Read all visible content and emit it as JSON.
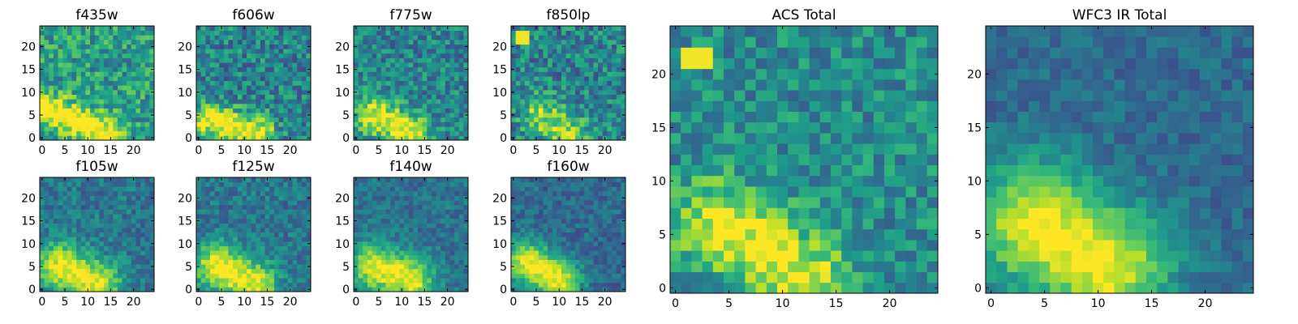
{
  "figure": {
    "background": "#ffffff",
    "colormap": "viridis",
    "colormap_stops": [
      "#440154",
      "#482777",
      "#3e4989",
      "#31688e",
      "#26828e",
      "#1f9e89",
      "#35b779",
      "#6ece58",
      "#b5de2b",
      "#fde725"
    ]
  },
  "chart_data": [
    {
      "type": "heatmap",
      "title": "f435w",
      "grid": [
        25,
        25
      ],
      "xlim": [
        0,
        24
      ],
      "ylim": [
        0,
        24
      ],
      "xticks": [
        0,
        5,
        10,
        15,
        20
      ],
      "yticks": [
        0,
        5,
        10,
        15,
        20
      ],
      "blob": {
        "type": "ridge",
        "from": [
          2,
          6
        ],
        "to": [
          14,
          1
        ],
        "width": 3.5,
        "amp": 0.55
      },
      "base": 0.55,
      "noise": 0.22,
      "seed": 11
    },
    {
      "type": "heatmap",
      "title": "f606w",
      "grid": [
        25,
        25
      ],
      "xlim": [
        0,
        24
      ],
      "ylim": [
        0,
        24
      ],
      "xticks": [
        0,
        5,
        10,
        15,
        20
      ],
      "yticks": [
        0,
        5,
        10,
        15,
        20
      ],
      "blob": {
        "type": "ridge",
        "from": [
          2,
          4
        ],
        "to": [
          13,
          1
        ],
        "width": 3.5,
        "amp": 0.6
      },
      "base": 0.45,
      "noise": 0.22,
      "seed": 23
    },
    {
      "type": "heatmap",
      "title": "f775w",
      "grid": [
        25,
        25
      ],
      "xlim": [
        0,
        24
      ],
      "ylim": [
        0,
        24
      ],
      "xticks": [
        0,
        5,
        10,
        15,
        20
      ],
      "yticks": [
        0,
        5,
        10,
        15,
        20
      ],
      "blob": {
        "type": "ridge",
        "from": [
          4,
          5
        ],
        "to": [
          12,
          1
        ],
        "width": 4.0,
        "amp": 0.55
      },
      "base": 0.45,
      "noise": 0.2,
      "seed": 37
    },
    {
      "type": "heatmap",
      "title": "f850lp",
      "grid": [
        25,
        25
      ],
      "xlim": [
        0,
        24
      ],
      "ylim": [
        0,
        24
      ],
      "xticks": [
        0,
        5,
        10,
        15,
        20
      ],
      "yticks": [
        0,
        5,
        10,
        15,
        20
      ],
      "blob": {
        "type": "ridge",
        "from": [
          6,
          5
        ],
        "to": [
          12,
          1
        ],
        "width": 4.0,
        "amp": 0.4
      },
      "base": 0.45,
      "noise": 0.22,
      "seed": 41,
      "hotspot": {
        "x": [
          1,
          3
        ],
        "y": [
          21,
          23
        ],
        "value": 0.98
      }
    },
    {
      "type": "heatmap",
      "title": "f105w",
      "grid": [
        25,
        25
      ],
      "xlim": [
        0,
        24
      ],
      "ylim": [
        0,
        24
      ],
      "xticks": [
        0,
        5,
        10,
        15,
        20
      ],
      "yticks": [
        0,
        5,
        10,
        15,
        20
      ],
      "blob": {
        "type": "ridge",
        "from": [
          4,
          5
        ],
        "to": [
          12,
          1
        ],
        "width": 5.0,
        "amp": 0.6
      },
      "base": 0.4,
      "noise": 0.14,
      "seed": 53
    },
    {
      "type": "heatmap",
      "title": "f125w",
      "grid": [
        25,
        25
      ],
      "xlim": [
        0,
        24
      ],
      "ylim": [
        0,
        24
      ],
      "xticks": [
        0,
        5,
        10,
        15,
        20
      ],
      "yticks": [
        0,
        5,
        10,
        15,
        20
      ],
      "blob": {
        "type": "ridge",
        "from": [
          4,
          5
        ],
        "to": [
          12,
          1
        ],
        "width": 5.0,
        "amp": 0.6
      },
      "base": 0.4,
      "noise": 0.14,
      "seed": 67
    },
    {
      "type": "heatmap",
      "title": "f140w",
      "grid": [
        25,
        25
      ],
      "xlim": [
        0,
        24
      ],
      "ylim": [
        0,
        24
      ],
      "xticks": [
        0,
        5,
        10,
        15,
        20
      ],
      "yticks": [
        0,
        5,
        10,
        15,
        20
      ],
      "blob": {
        "type": "ridge",
        "from": [
          4,
          5
        ],
        "to": [
          12,
          2
        ],
        "width": 5.0,
        "amp": 0.6
      },
      "base": 0.38,
      "noise": 0.12,
      "seed": 71
    },
    {
      "type": "heatmap",
      "title": "f160w",
      "grid": [
        25,
        25
      ],
      "xlim": [
        0,
        24
      ],
      "ylim": [
        0,
        24
      ],
      "xticks": [
        0,
        5,
        10,
        15,
        20
      ],
      "yticks": [
        0,
        5,
        10,
        15,
        20
      ],
      "blob": {
        "type": "ridge",
        "from": [
          3,
          6
        ],
        "to": [
          10,
          2
        ],
        "width": 4.5,
        "amp": 0.65
      },
      "base": 0.35,
      "noise": 0.12,
      "seed": 83
    },
    {
      "type": "heatmap",
      "title": "ACS Total",
      "grid": [
        25,
        25
      ],
      "xlim": [
        0,
        24
      ],
      "ylim": [
        0,
        24
      ],
      "xticks": [
        0,
        5,
        10,
        15,
        20
      ],
      "yticks": [
        0,
        5,
        10,
        15,
        20
      ],
      "blob": {
        "type": "ridge",
        "from": [
          4,
          6
        ],
        "to": [
          12,
          1
        ],
        "width": 4.0,
        "amp": 0.5
      },
      "base": 0.48,
      "noise": 0.18,
      "seed": 97,
      "hotspot": {
        "x": [
          1,
          3
        ],
        "y": [
          21,
          22
        ],
        "value": 0.98
      }
    },
    {
      "type": "heatmap",
      "title": "WFC3 IR Total",
      "grid": [
        25,
        25
      ],
      "xlim": [
        0,
        24
      ],
      "ylim": [
        0,
        24
      ],
      "xticks": [
        0,
        5,
        10,
        15,
        20
      ],
      "yticks": [
        0,
        5,
        10,
        15,
        20
      ],
      "blob": {
        "type": "ridge",
        "from": [
          4,
          6
        ],
        "to": [
          11,
          2
        ],
        "width": 5.5,
        "amp": 0.65
      },
      "base": 0.35,
      "noise": 0.1,
      "seed": 101
    }
  ]
}
